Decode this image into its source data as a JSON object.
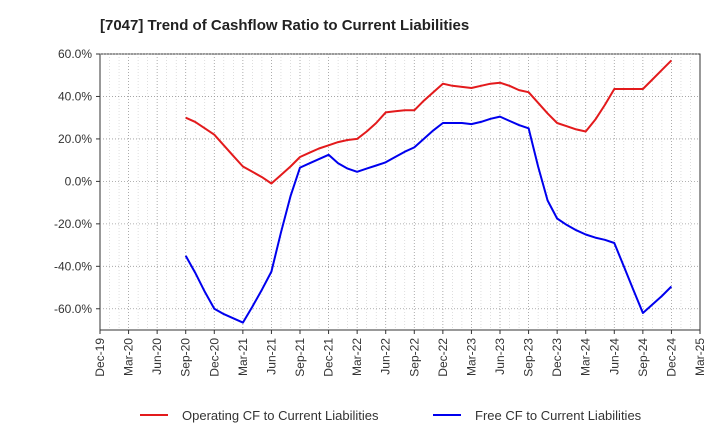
{
  "chart_data": {
    "type": "line",
    "title": "[7047]  Trend of Cashflow Ratio to Current Liabilities",
    "xlabel": "",
    "ylabel": "",
    "x_ticks": [
      "Dec-19",
      "Mar-20",
      "Jun-20",
      "Sep-20",
      "Dec-20",
      "Mar-21",
      "Jun-21",
      "Sep-21",
      "Dec-21",
      "Mar-22",
      "Jun-22",
      "Sep-22",
      "Dec-22",
      "Mar-23",
      "Jun-23",
      "Sep-23",
      "Dec-23",
      "Mar-24",
      "Jun-24",
      "Sep-24",
      "Dec-24",
      "Mar-25"
    ],
    "y_ticks": [
      "60.0%",
      "40.0%",
      "20.0%",
      "0.0%",
      "-20.0%",
      "-40.0%",
      "-60.0%"
    ],
    "y_tick_values": [
      60,
      40,
      20,
      0,
      -20,
      -40,
      -60
    ],
    "ylim": [
      -70,
      60
    ],
    "grid": true,
    "legend_position": "bottom",
    "series": [
      {
        "name": "Operating CF to Current Liabilities",
        "color": "#e31a1c",
        "x": [
          "Sep-20",
          "Oct-20",
          "Nov-20",
          "Dec-20",
          "Jan-21",
          "Feb-21",
          "Mar-21",
          "Apr-21",
          "May-21",
          "Jun-21",
          "Jul-21",
          "Aug-21",
          "Sep-21",
          "Oct-21",
          "Nov-21",
          "Dec-21",
          "Jan-22",
          "Feb-22",
          "Mar-22",
          "Apr-22",
          "May-22",
          "Jun-22",
          "Jul-22",
          "Aug-22",
          "Sep-22",
          "Oct-22",
          "Nov-22",
          "Dec-22",
          "Jan-23",
          "Feb-23",
          "Mar-23",
          "Apr-23",
          "May-23",
          "Jun-23",
          "Jul-23",
          "Aug-23",
          "Sep-23",
          "Oct-23",
          "Nov-23",
          "Dec-23",
          "Jan-24",
          "Feb-24",
          "Mar-24",
          "Apr-24",
          "May-24",
          "Jun-24",
          "Jul-24",
          "Aug-24",
          "Sep-24",
          "Oct-24",
          "Nov-24",
          "Dec-24"
        ],
        "values": [
          30,
          28,
          25,
          22,
          17,
          12,
          7,
          4.5,
          2,
          -1,
          3,
          7,
          11.5,
          13.5,
          15.5,
          17,
          18.5,
          19.5,
          20,
          23.5,
          27.5,
          32.5,
          33,
          33.5,
          33.5,
          38,
          42,
          46,
          45,
          44.5,
          44,
          45,
          46,
          46.5,
          45,
          43,
          42,
          37,
          32,
          27.5,
          26,
          24.5,
          23.5,
          29,
          36,
          43.5,
          43.5,
          43.5,
          43.5,
          48,
          52.5,
          57
        ]
      },
      {
        "name": "Free CF to Current Liabilities",
        "color": "#0000ee",
        "x": [
          "Sep-20",
          "Oct-20",
          "Nov-20",
          "Dec-20",
          "Jan-21",
          "Feb-21",
          "Mar-21",
          "Apr-21",
          "May-21",
          "Jun-21",
          "Jul-21",
          "Aug-21",
          "Sep-21",
          "Oct-21",
          "Nov-21",
          "Dec-21",
          "Jan-22",
          "Feb-22",
          "Mar-22",
          "Apr-22",
          "May-22",
          "Jun-22",
          "Jul-22",
          "Aug-22",
          "Sep-22",
          "Oct-22",
          "Nov-22",
          "Dec-22",
          "Jan-23",
          "Feb-23",
          "Mar-23",
          "Apr-23",
          "May-23",
          "Jun-23",
          "Jul-23",
          "Aug-23",
          "Sep-23",
          "Oct-23",
          "Nov-23",
          "Dec-23",
          "Jan-24",
          "Feb-24",
          "Mar-24",
          "Apr-24",
          "May-24",
          "Jun-24",
          "Jul-24",
          "Aug-24",
          "Sep-24",
          "Oct-24",
          "Nov-24",
          "Dec-24"
        ],
        "values": [
          -35,
          -43,
          -52,
          -60,
          -62.5,
          -64.5,
          -66.5,
          -59,
          -51,
          -42.5,
          -24,
          -7,
          6.5,
          8.5,
          10.5,
          12.5,
          8.5,
          6,
          4.5,
          6,
          7.5,
          9,
          11.5,
          14,
          16,
          20,
          24,
          27.5,
          27.5,
          27.5,
          27,
          28,
          29.5,
          30.5,
          28.5,
          26.5,
          25,
          7,
          -9,
          -17.5,
          -20.5,
          -23,
          -25,
          -26.5,
          -27.5,
          -29,
          -40,
          -51,
          -62,
          -58,
          -54,
          -49.5
        ]
      }
    ]
  }
}
